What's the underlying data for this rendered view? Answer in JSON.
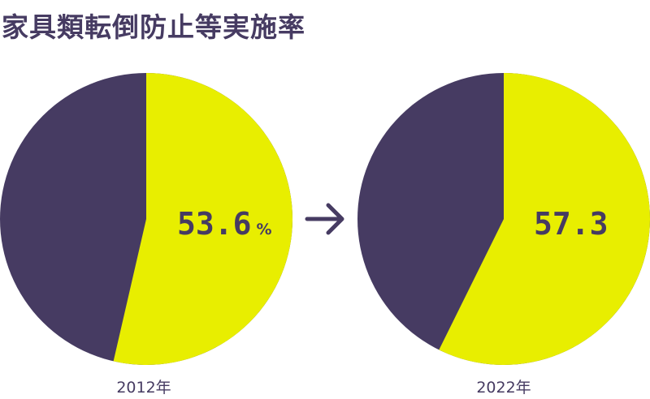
{
  "chart_data": {
    "type": "pie",
    "title": "家具類転倒防止等実施率",
    "colors": {
      "highlight": "#e8ee00",
      "rest": "#463b62",
      "text": "#463b62"
    },
    "charts": [
      {
        "label": "2012年",
        "value": 53.6,
        "value_text": "53.6",
        "unit": "%"
      },
      {
        "label": "2022年",
        "value": 57.3,
        "value_text": "57.3",
        "unit": ""
      }
    ],
    "arrow_icon": "arrow-right-icon"
  }
}
